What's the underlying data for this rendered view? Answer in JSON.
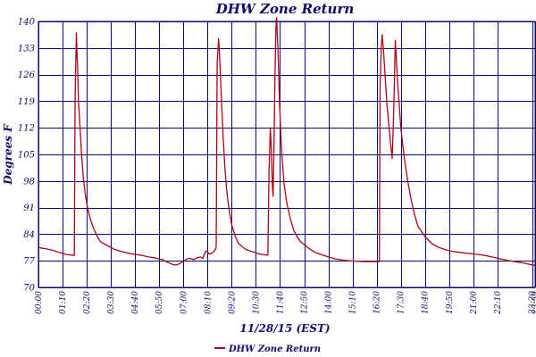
{
  "chart_data": {
    "type": "line",
    "title": "DHW Zone Return",
    "xlabel": "11/28/15 (EST)",
    "ylabel": "Degrees F",
    "ylim": [
      70,
      140
    ],
    "yticks": [
      "70",
      "77",
      "84",
      "91",
      "98",
      "105",
      "112",
      "119",
      "126",
      "133",
      "140"
    ],
    "xlim": [
      0,
      1439
    ],
    "xticks": [
      {
        "t": 0,
        "label": "00:00"
      },
      {
        "t": 70,
        "label": "01:10"
      },
      {
        "t": 140,
        "label": "02:20"
      },
      {
        "t": 210,
        "label": "03:30"
      },
      {
        "t": 280,
        "label": "04:40"
      },
      {
        "t": 350,
        "label": "05:50"
      },
      {
        "t": 420,
        "label": "07:00"
      },
      {
        "t": 490,
        "label": "08:10"
      },
      {
        "t": 560,
        "label": "09:20"
      },
      {
        "t": 630,
        "label": "10:30"
      },
      {
        "t": 700,
        "label": "11:40"
      },
      {
        "t": 770,
        "label": "12:50"
      },
      {
        "t": 840,
        "label": "14:00"
      },
      {
        "t": 910,
        "label": "15:10"
      },
      {
        "t": 980,
        "label": "16:20"
      },
      {
        "t": 1050,
        "label": "17:30"
      },
      {
        "t": 1120,
        "label": "18:40"
      },
      {
        "t": 1190,
        "label": "19:50"
      },
      {
        "t": 1260,
        "label": "21:00"
      },
      {
        "t": 1330,
        "label": "22:10"
      },
      {
        "t": 1430,
        "label": "23:20"
      },
      {
        "t": 1439,
        "label": "23:59"
      }
    ],
    "grid": true,
    "legend_position": "bottom",
    "series": [
      {
        "name": "DHW Zone Return",
        "color": "#b00018",
        "x": [
          0,
          20,
          40,
          60,
          80,
          104,
          106,
          108,
          110,
          112,
          114,
          116,
          120,
          125,
          130,
          135,
          140,
          150,
          160,
          170,
          180,
          200,
          220,
          240,
          260,
          280,
          300,
          320,
          340,
          350,
          360,
          370,
          380,
          390,
          400,
          410,
          420,
          430,
          440,
          450,
          460,
          470,
          476,
          480,
          485,
          490,
          495,
          500,
          508,
          515,
          518,
          522,
          525,
          530,
          535,
          540,
          545,
          550,
          555,
          560,
          570,
          580,
          600,
          620,
          640,
          650,
          665,
          668,
          672,
          675,
          678,
          680,
          682,
          685,
          688,
          690,
          694,
          698,
          702,
          706,
          712,
          720,
          730,
          740,
          750,
          760,
          780,
          800,
          820,
          840,
          860,
          880,
          900,
          920,
          940,
          960,
          988,
          990,
          993,
          996,
          1000,
          1005,
          1010,
          1015,
          1020,
          1025,
          1028,
          1031,
          1034,
          1040,
          1050,
          1060,
          1070,
          1080,
          1090,
          1100,
          1120,
          1140,
          1160,
          1180,
          1200,
          1220,
          1240,
          1260,
          1280,
          1300,
          1320,
          1340,
          1360,
          1380,
          1400,
          1420,
          1439
        ],
        "y": [
          80.5,
          80.2,
          79.8,
          79.2,
          78.7,
          78.4,
          118,
          128,
          137,
          131,
          127,
          119,
          113,
          105,
          99,
          95,
          92,
          88,
          85.5,
          83.5,
          82,
          81,
          80,
          79.5,
          79,
          78.7,
          78.4,
          78,
          77.7,
          77.5,
          77.3,
          76.8,
          76.4,
          76,
          75.9,
          76.3,
          76.8,
          77.5,
          77.6,
          77.3,
          77.8,
          78,
          77.6,
          78.6,
          79.6,
          79.3,
          78.8,
          78.9,
          79.4,
          80.4,
          129,
          135.5,
          131,
          120,
          110,
          102,
          96,
          92,
          89,
          86.5,
          83.5,
          81.5,
          80,
          79.4,
          78.8,
          78.6,
          78.5,
          100,
          112,
          106,
          96,
          94,
          104,
          124,
          138,
          141,
          133,
          120,
          111,
          104,
          97,
          92,
          88,
          85,
          83.2,
          82,
          80.5,
          79.3,
          78.6,
          78,
          77.5,
          77.2,
          77,
          76.9,
          76.8,
          76.8,
          76.8,
          123,
          133,
          136.5,
          132,
          125,
          118,
          113,
          108,
          104,
          112,
          123,
          135,
          125,
          112,
          104,
          98,
          93,
          89,
          86,
          83.4,
          81.5,
          80.5,
          79.9,
          79.5,
          79.2,
          79,
          78.8,
          78.6,
          78.3,
          77.9,
          77.5,
          77.1,
          76.8,
          76.5,
          76.1,
          75.8
        ]
      }
    ]
  }
}
